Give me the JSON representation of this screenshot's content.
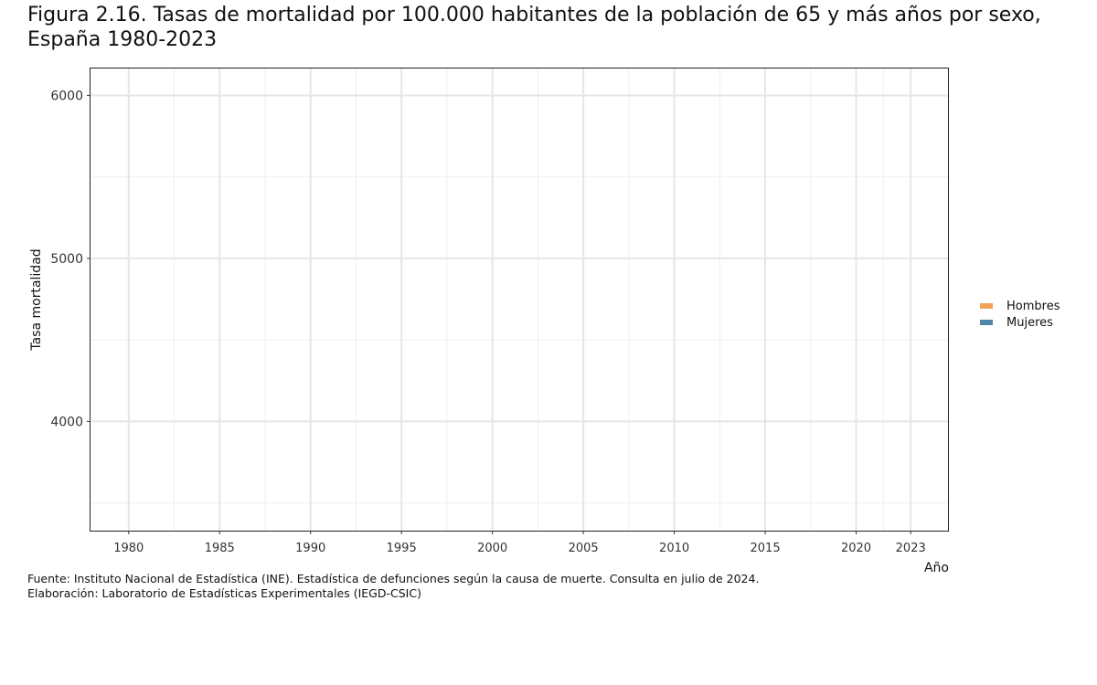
{
  "title_line1": "Figura 2.16. Tasas de mortalidad por 100.000 habitantes de la población de 65 y más años por sexo,",
  "title_line2": "España 1980-2023",
  "caption": {
    "source": "Fuente: Instituto Nacional de Estadística (INE). Estadística de defunciones según la causa de muerte. Consulta en julio de 2024.",
    "credit": "Elaboración: Laboratorio de Estadísticas Experimentales (IEGD-CSIC)"
  },
  "chart_data": {
    "type": "area",
    "title": "Figura 2.16. Tasas de mortalidad por 100.000 habitantes de la población de 65 y más años por sexo, España 1980-2023",
    "xlabel": "Año",
    "ylabel": "Tasa mortalidad",
    "x_ticks": [
      1980,
      1985,
      1990,
      1995,
      2000,
      2005,
      2010,
      2015,
      2020,
      2023
    ],
    "y_ticks": [
      4000,
      5000,
      6000
    ],
    "xlim": [
      1977.9,
      2025.05
    ],
    "ylim": [
      3330,
      6165
    ],
    "grid": true,
    "legend_position": "right",
    "series": [
      {
        "name": "Hombres",
        "color": "#F4A259",
        "values": []
      },
      {
        "name": "Mujeres",
        "color": "#4E86A8",
        "values": []
      }
    ]
  }
}
